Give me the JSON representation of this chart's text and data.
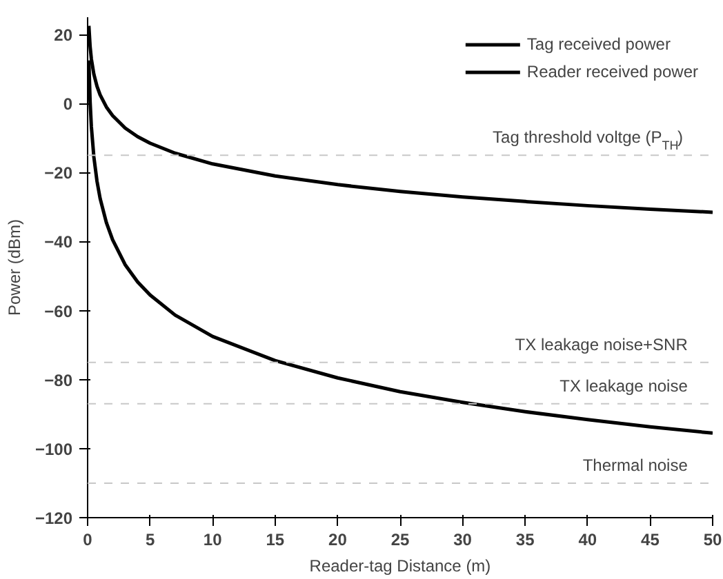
{
  "chart_data": {
    "type": "line",
    "xlabel": "Reader-tag Distance (m)",
    "ylabel": "Power (dBm)",
    "x": [
      0.1,
      0.2,
      0.3,
      0.5,
      0.75,
      1,
      1.5,
      2,
      3,
      4,
      5,
      7,
      10,
      15,
      20,
      25,
      30,
      35,
      40,
      45,
      50
    ],
    "series": [
      {
        "name": "Tag received power",
        "color": "#000000",
        "values": [
          22.5,
          16.5,
          12.9,
          8.5,
          5.0,
          2.5,
          -1.0,
          -3.5,
          -7.1,
          -9.6,
          -11.5,
          -14.4,
          -17.5,
          -21.0,
          -23.5,
          -25.5,
          -27.1,
          -28.4,
          -29.6,
          -30.6,
          -31.5
        ]
      },
      {
        "name": "Reader received power",
        "color": "#000000",
        "values": [
          12.5,
          0.5,
          -6.7,
          -15.5,
          -22.5,
          -27.5,
          -34.5,
          -39.5,
          -46.7,
          -51.7,
          -55.5,
          -61.3,
          -67.5,
          -74.5,
          -79.5,
          -83.5,
          -86.6,
          -89.3,
          -91.6,
          -93.7,
          -95.5
        ]
      }
    ],
    "xlim": [
      0,
      50
    ],
    "ylim": [
      -120,
      25
    ],
    "xticks": [
      0,
      5,
      10,
      15,
      20,
      25,
      30,
      35,
      40,
      45,
      50
    ],
    "yticks": [
      -120,
      -100,
      -80,
      -60,
      -40,
      -20,
      0,
      20
    ],
    "ref_lines": [
      {
        "axis": "y",
        "value": -15,
        "label": "Tag threshold voltge (P$_{TH}$)",
        "color": "#c8c8c8",
        "line_style": "dashed"
      },
      {
        "axis": "y",
        "value": -75,
        "label": "TX leakage noise+SNR",
        "color": "#c8c8c8",
        "line_style": "dashed"
      },
      {
        "axis": "y",
        "value": -87,
        "label": "TX leakage noise",
        "color": "#c8c8c8",
        "line_style": "dashed"
      },
      {
        "axis": "y",
        "value": -110,
        "label": "Thermal noise",
        "color": "#c8c8c8",
        "line_style": "dashed"
      }
    ],
    "grid": false,
    "legend": "top right",
    "marker": "none",
    "line_style": "solid"
  }
}
